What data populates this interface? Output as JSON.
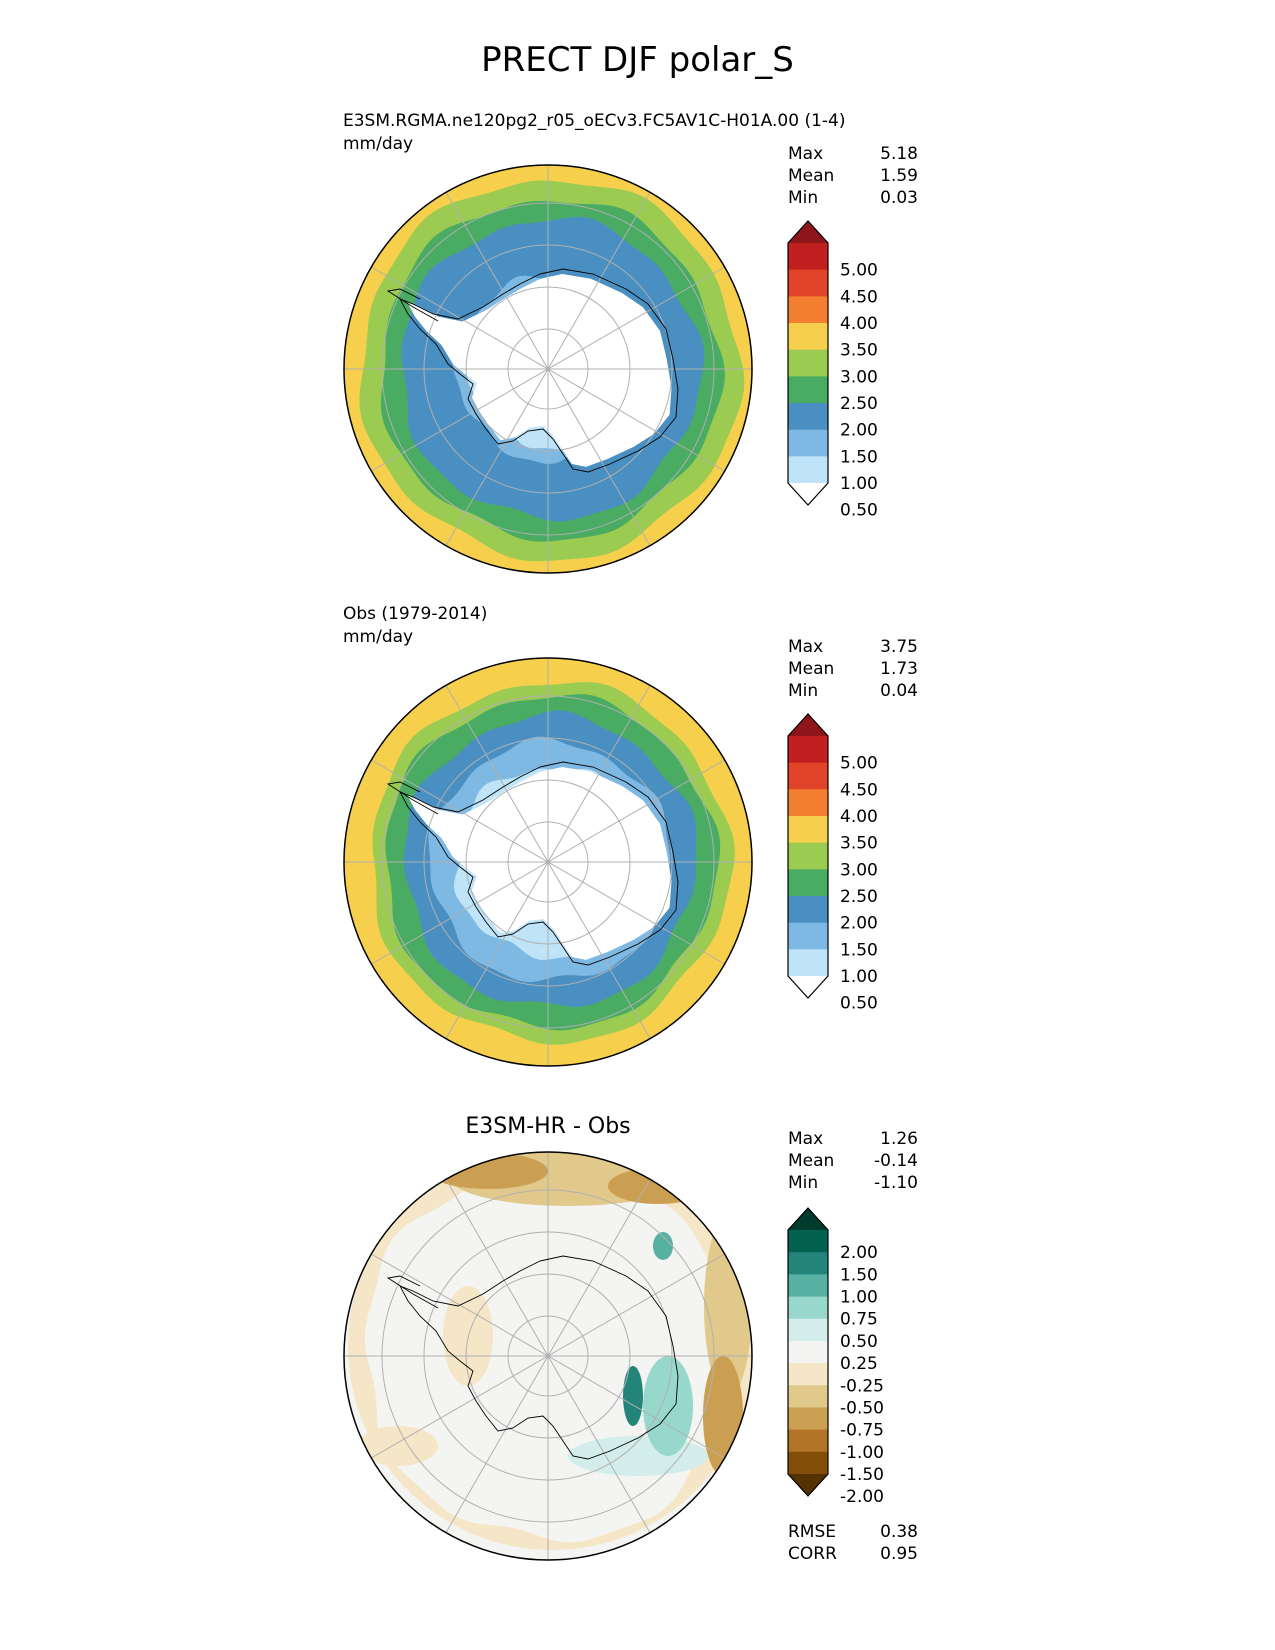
{
  "title": "PRECT DJF polar_S",
  "colors": {
    "precip": [
      "#ffffff",
      "#bfe3f7",
      "#7eb9e4",
      "#4a8fc2",
      "#4aab62",
      "#9ccb52",
      "#f6d04d",
      "#f57f31",
      "#e04328",
      "#c0201f",
      "#8e1519"
    ],
    "diff": [
      "#553202",
      "#824e0a",
      "#b27426",
      "#cb9f52",
      "#e1c98b",
      "#f4e6c6",
      "#f4f4f2",
      "#d3eeea",
      "#98d7cb",
      "#56b1a2",
      "#23857a",
      "#02624f",
      "#003b2e"
    ]
  },
  "panels": [
    {
      "name": "test",
      "label": "E3SM.RGMA.ne120pg2_r05_oECv3.FC5AV1C-H01A.00 (1-4)",
      "units": "mm/day",
      "stats": [
        {
          "k": "Max",
          "v": "5.18"
        },
        {
          "k": "Mean",
          "v": "1.59"
        },
        {
          "k": "Min",
          "v": "0.03"
        }
      ],
      "colorbar": [
        "5.00",
        "4.50",
        "4.00",
        "3.50",
        "3.00",
        "2.50",
        "2.00",
        "1.50",
        "1.00",
        "0.50"
      ]
    },
    {
      "name": "obs",
      "label": "Obs (1979-2014)",
      "units": "mm/day",
      "stats": [
        {
          "k": "Max",
          "v": "3.75"
        },
        {
          "k": "Mean",
          "v": "1.73"
        },
        {
          "k": "Min",
          "v": "0.04"
        }
      ],
      "colorbar": [
        "5.00",
        "4.50",
        "4.00",
        "3.50",
        "3.00",
        "2.50",
        "2.00",
        "1.50",
        "1.00",
        "0.50"
      ]
    },
    {
      "name": "diff",
      "title": "E3SM-HR - Obs",
      "stats": [
        {
          "k": "Max",
          "v": "1.26"
        },
        {
          "k": "Mean",
          "v": "-0.14"
        },
        {
          "k": "Min",
          "v": "-1.10"
        }
      ],
      "colorbar": [
        "2.00",
        "1.50",
        "1.00",
        "0.75",
        "0.50",
        "0.25",
        "-0.25",
        "-0.50",
        "-0.75",
        "-1.00",
        "-1.50",
        "-2.00"
      ],
      "metrics": [
        {
          "k": "RMSE",
          "v": "0.38"
        },
        {
          "k": "CORR",
          "v": "0.95"
        }
      ]
    }
  ]
}
